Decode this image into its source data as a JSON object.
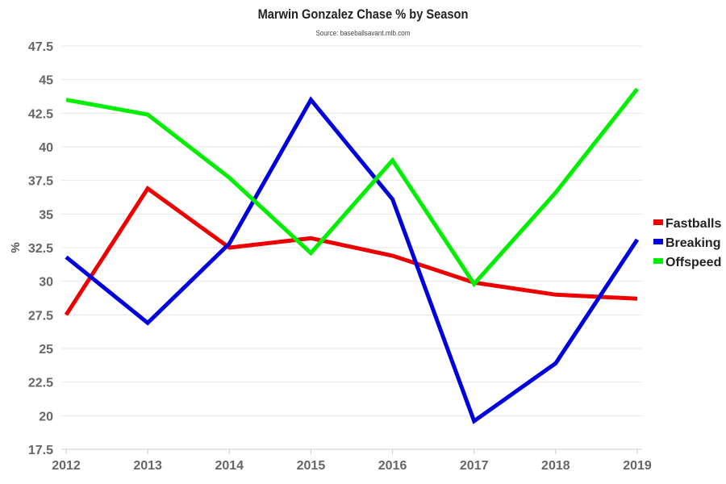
{
  "chart_data": {
    "type": "line",
    "title": "Marwin Gonzalez Chase % by Season",
    "subtitle": "Source: baseballsavant.mlb.com",
    "xlabel": "",
    "ylabel": "%",
    "x": [
      "2012",
      "2013",
      "2014",
      "2015",
      "2016",
      "2017",
      "2018",
      "2019"
    ],
    "ylim": [
      17.5,
      47.5
    ],
    "yticks": [
      17.5,
      20,
      22.5,
      25,
      27.5,
      30,
      32.5,
      35,
      37.5,
      40,
      42.5,
      45,
      47.5
    ],
    "ytick_labels": [
      "17.5",
      "20",
      "22.5",
      "25",
      "27.5",
      "30",
      "32.5",
      "35",
      "37.5",
      "40",
      "42.5",
      "45",
      "47.5"
    ],
    "grid": true,
    "legend_position": "right",
    "series": [
      {
        "name": "Fastballs",
        "color": "#ee0000",
        "values": [
          27.5,
          36.9,
          32.5,
          33.2,
          31.9,
          29.9,
          29.0,
          28.7
        ]
      },
      {
        "name": "Breaking",
        "color": "#0000dd",
        "values": [
          31.8,
          26.9,
          32.8,
          43.5,
          36.1,
          19.6,
          23.9,
          33.1
        ]
      },
      {
        "name": "Offspeed",
        "color": "#00ee00",
        "values": [
          43.5,
          42.4,
          37.7,
          32.1,
          39.0,
          29.8,
          36.6,
          44.3
        ]
      }
    ]
  }
}
